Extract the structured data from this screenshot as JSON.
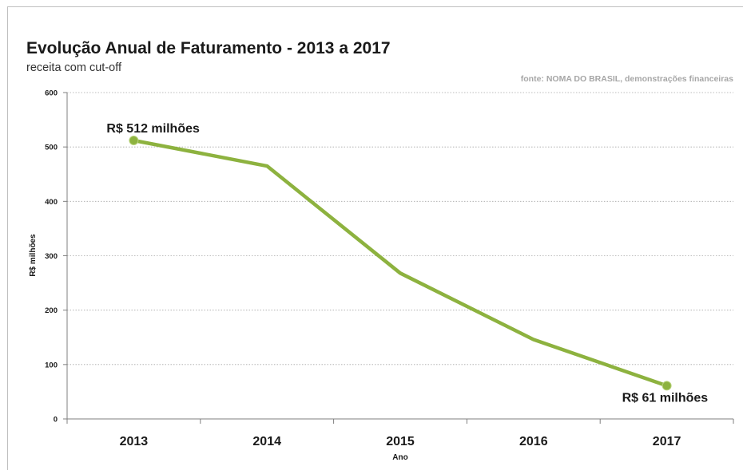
{
  "header": {
    "title": "Evolução Anual de Faturamento - 2013 a 2017",
    "subtitle": "receita com cut-off",
    "source": "fonte: NOMA DO BRASIL, demonstrações financeiras"
  },
  "chart_data": {
    "type": "line",
    "title": "Evolução Anual de Faturamento - 2013 a 2017",
    "subtitle": "receita com cut-off",
    "xlabel": "Ano",
    "ylabel": "R$ milhões",
    "categories": [
      "2013",
      "2014",
      "2015",
      "2016",
      "2017"
    ],
    "series": [
      {
        "values": [
          512,
          465,
          268,
          146,
          61
        ]
      }
    ],
    "ylim": [
      0,
      600
    ],
    "yticks": [
      0,
      100,
      200,
      300,
      400,
      500,
      600
    ],
    "grid": true,
    "annotations": [
      {
        "category": "2013",
        "text": "R$ 512 milhões"
      },
      {
        "category": "2017",
        "text": "R$ 61 milhões"
      }
    ],
    "colors": {
      "line": "#8db23f",
      "marker": "#8db23f",
      "grid": "#a6a6a6",
      "axis": "#7f7f7f"
    }
  }
}
